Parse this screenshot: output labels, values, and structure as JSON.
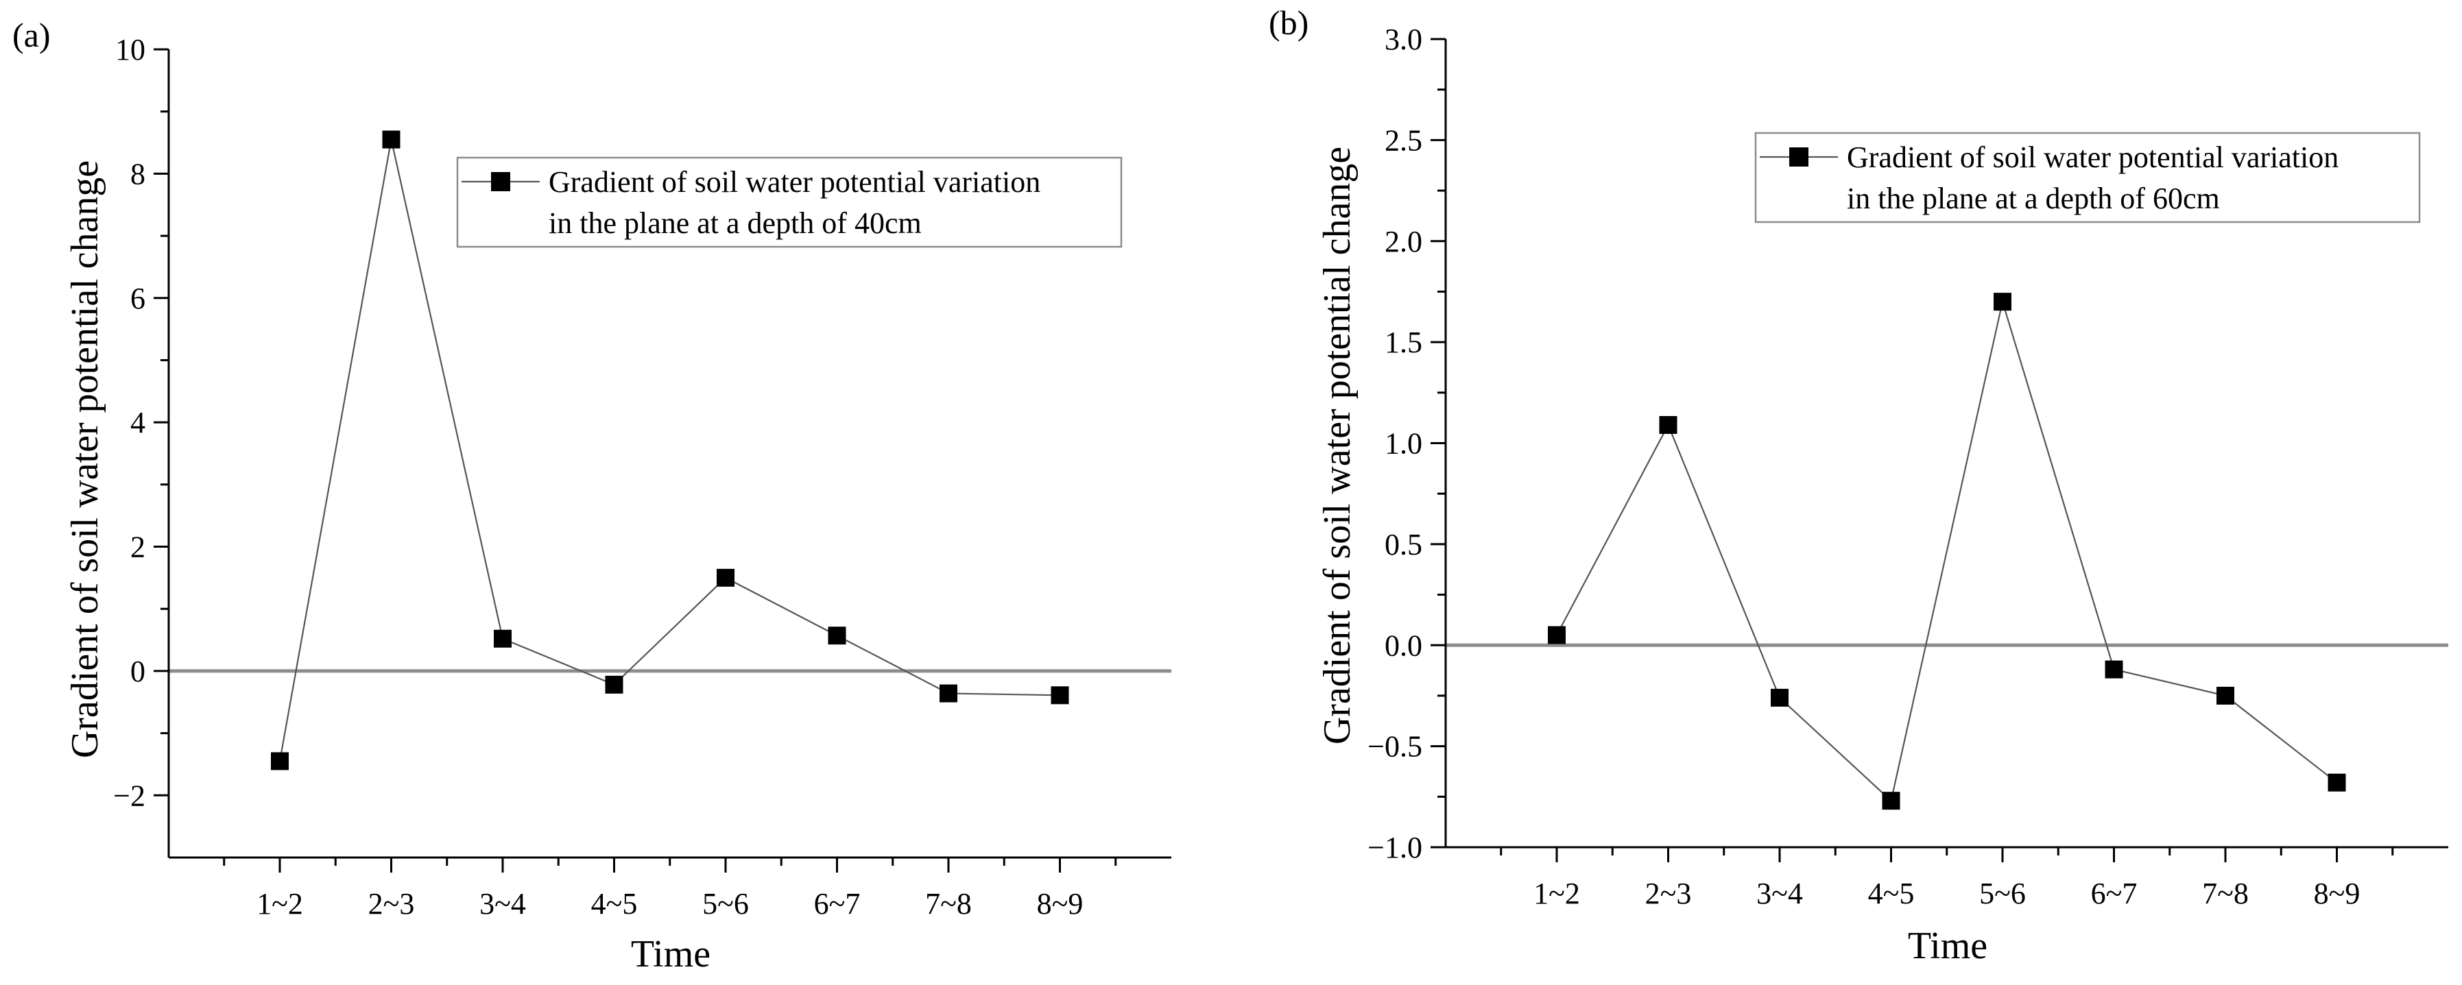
{
  "chart_data": [
    {
      "type": "line",
      "panel_label": "(a)",
      "title": "",
      "xlabel": "Time",
      "ylabel": "Gradient of soil water potential change",
      "categories": [
        "1~2",
        "2~3",
        "3~4",
        "4~5",
        "5~6",
        "6~7",
        "7~8",
        "8~9"
      ],
      "series": [
        {
          "name": "Gradient of soil water potential variation in the plane at a depth of 40cm",
          "legend_lines": [
            "Gradient of soil water potential variation",
            "in the plane at a depth of 40cm"
          ],
          "values": [
            -1.45,
            8.55,
            0.52,
            -0.22,
            1.5,
            0.57,
            -0.36,
            -0.39
          ]
        }
      ],
      "ylim": [
        -3,
        10
      ],
      "yticks": [
        -2,
        0,
        2,
        4,
        6,
        8,
        10
      ],
      "ytick_labels": [
        "−2",
        "0",
        "2",
        "4",
        "6",
        "8",
        "10"
      ],
      "reference_line": 0,
      "legend_position": "top-right",
      "grid": false
    },
    {
      "type": "line",
      "panel_label": "(b)",
      "title": "",
      "xlabel": "Time",
      "ylabel": "Gradient of soil water potential change",
      "categories": [
        "1~2",
        "2~3",
        "3~4",
        "4~5",
        "5~6",
        "6~7",
        "7~8",
        "8~9"
      ],
      "series": [
        {
          "name": "Gradient of soil water potential variation in the plane at a depth of 60cm",
          "legend_lines": [
            "Gradient of soil water potential variation",
            "in the plane at a depth of 60cm"
          ],
          "values": [
            0.05,
            1.09,
            -0.26,
            -0.77,
            1.7,
            -0.12,
            -0.25,
            -0.68
          ]
        }
      ],
      "ylim": [
        -1.0,
        3.0
      ],
      "yticks": [
        -1.0,
        -0.5,
        0.0,
        0.5,
        1.0,
        1.5,
        2.0,
        2.5,
        3.0
      ],
      "ytick_labels": [
        "−1.0",
        "−0.5",
        "0.0",
        "0.5",
        "1.0",
        "1.5",
        "2.0",
        "2.5",
        "3.0"
      ],
      "reference_line": 0,
      "legend_position": "top-right",
      "grid": false
    }
  ]
}
